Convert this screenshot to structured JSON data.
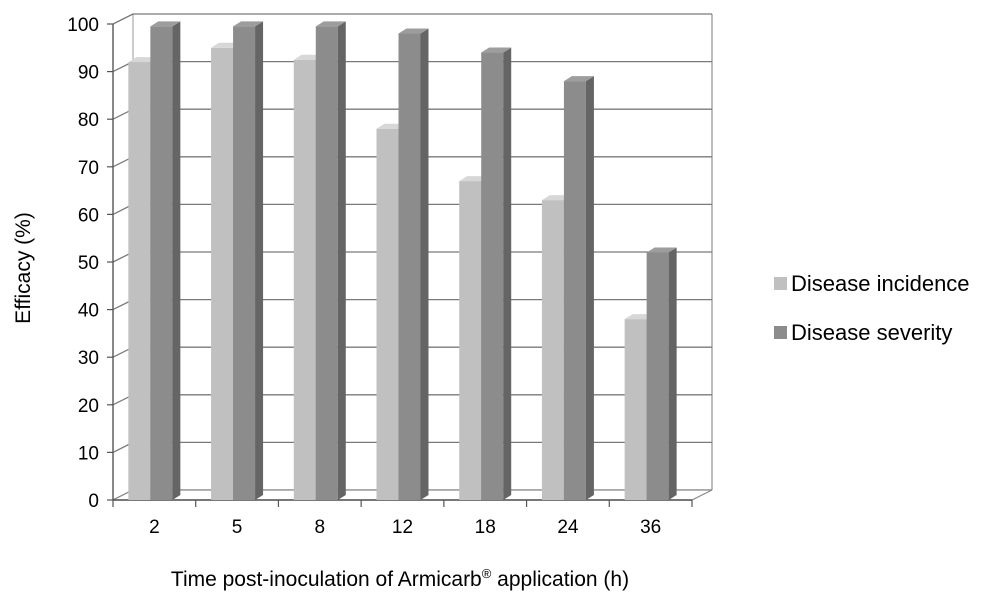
{
  "chart_data": {
    "type": "bar",
    "style": "3d-clustered-column",
    "categories": [
      "2",
      "5",
      "8",
      "12",
      "18",
      "24",
      "36"
    ],
    "series": [
      {
        "name": "Disease incidence",
        "color": "#c0c0c0",
        "values": [
          92,
          95,
          92.5,
          78,
          67,
          63,
          38
        ]
      },
      {
        "name": "Disease severity",
        "color": "#8c8c8c",
        "values": [
          99.5,
          99.5,
          99.5,
          98,
          94,
          88,
          52
        ]
      }
    ],
    "title": "",
    "xlabel": "Time post-inoculation of Armicarb",
    "xlabel_superscript": "®",
    "xlabel_suffix": " application (h)",
    "ylabel": "Efficacy (%)",
    "ylim": [
      0,
      100
    ],
    "yticks": [
      0,
      10,
      20,
      30,
      40,
      50,
      60,
      70,
      80,
      90,
      100
    ],
    "grid": true,
    "legend_position": "right"
  }
}
